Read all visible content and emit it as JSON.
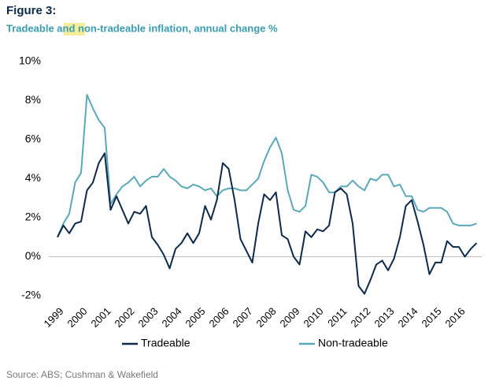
{
  "chart_data": {
    "type": "line",
    "title": "Figure 3:",
    "subtitle": "Tradeable and non-tradeable inflation, annual change %",
    "source": "Source: ABS; Cushman & Wakefield",
    "categories": [
      "1999",
      null,
      null,
      null,
      "2000",
      null,
      null,
      null,
      "2001",
      null,
      null,
      null,
      "2002",
      null,
      null,
      null,
      "2003",
      null,
      null,
      null,
      "2004",
      null,
      null,
      null,
      "2005",
      null,
      null,
      null,
      "2006",
      null,
      null,
      null,
      "2007",
      null,
      null,
      null,
      "2008",
      null,
      null,
      null,
      "2009",
      null,
      null,
      null,
      "2010",
      null,
      null,
      null,
      "2011",
      null,
      null,
      null,
      "2012",
      null,
      null,
      null,
      "2013",
      null,
      null,
      null,
      "2014",
      null,
      null,
      null,
      "2015",
      null,
      null,
      null,
      "2016",
      null,
      null,
      null
    ],
    "series": [
      {
        "name": "Tradeable",
        "color": "#0d2a4a",
        "values": [
          1.0,
          1.6,
          1.2,
          1.7,
          1.8,
          3.4,
          3.8,
          4.8,
          5.3,
          2.4,
          3.1,
          2.4,
          1.7,
          2.3,
          2.2,
          2.6,
          1.0,
          0.6,
          0.1,
          -0.6,
          0.4,
          0.7,
          1.2,
          0.7,
          1.2,
          2.6,
          1.9,
          2.9,
          4.8,
          4.5,
          2.9,
          0.9,
          0.3,
          -0.3,
          1.7,
          3.2,
          2.9,
          3.3,
          1.1,
          0.9,
          0.0,
          -0.4,
          1.3,
          1.0,
          1.4,
          1.3,
          1.6,
          3.3,
          3.5,
          3.2,
          1.7,
          -1.5,
          -1.9,
          -1.2,
          -0.4,
          -0.2,
          -0.7,
          -0.1,
          1.0,
          2.6,
          2.9,
          1.8,
          0.6,
          -0.9,
          -0.3,
          -0.3,
          0.8,
          0.5,
          0.5,
          0.0,
          0.4,
          0.7
        ]
      },
      {
        "name": "Non-tradeable",
        "color": "#5ba8b8",
        "values": [
          1.0,
          1.7,
          2.2,
          3.8,
          4.3,
          8.3,
          7.6,
          7.0,
          6.6,
          2.7,
          3.2,
          3.6,
          3.8,
          4.1,
          3.6,
          3.9,
          4.1,
          4.1,
          4.5,
          4.1,
          3.9,
          3.6,
          3.5,
          3.7,
          3.6,
          3.4,
          3.5,
          3.1,
          3.4,
          3.5,
          3.5,
          3.4,
          3.4,
          3.7,
          4.0,
          4.9,
          5.6,
          6.1,
          5.3,
          3.4,
          2.4,
          2.3,
          2.6,
          4.2,
          4.1,
          3.8,
          3.3,
          3.3,
          3.6,
          3.6,
          3.9,
          3.6,
          3.4,
          4.0,
          3.9,
          4.2,
          4.2,
          3.6,
          3.7,
          3.1,
          3.1,
          2.4,
          2.3,
          2.5,
          2.5,
          2.5,
          2.3,
          1.7,
          1.6,
          1.6,
          1.6,
          1.7
        ]
      }
    ],
    "ylim": [
      -2,
      10
    ],
    "yticks": [
      {
        "value": -2,
        "label": "-2%"
      },
      {
        "value": 0,
        "label": "0%"
      },
      {
        "value": 2,
        "label": "2%"
      },
      {
        "value": 4,
        "label": "4%"
      },
      {
        "value": 6,
        "label": "6%"
      },
      {
        "value": 8,
        "label": "8%"
      },
      {
        "value": 10,
        "label": "10%"
      }
    ],
    "grid": false,
    "legend": "bottom"
  }
}
